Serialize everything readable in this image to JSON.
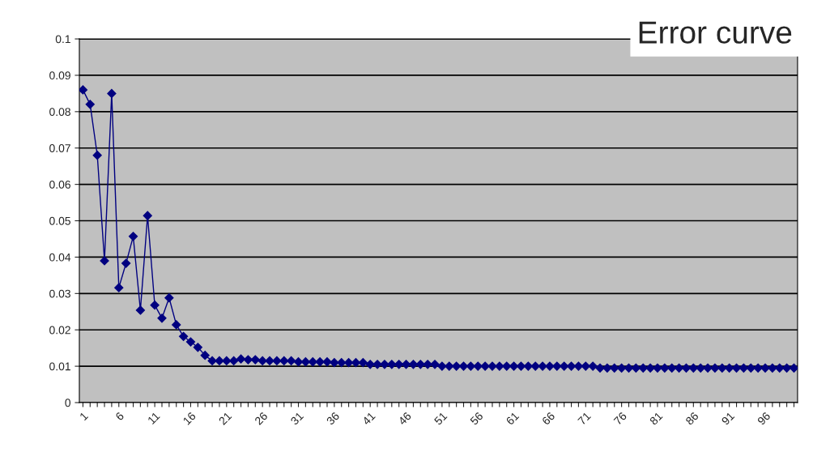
{
  "chart_data": {
    "type": "line",
    "title": "Error curve",
    "categories": [
      "1",
      null,
      null,
      null,
      null,
      "6",
      null,
      null,
      null,
      null,
      "11",
      null,
      null,
      null,
      null,
      "16",
      null,
      null,
      null,
      null,
      "21",
      null,
      null,
      null,
      null,
      "26",
      null,
      null,
      null,
      null,
      "31",
      null,
      null,
      null,
      null,
      "36",
      null,
      null,
      null,
      null,
      "41",
      null,
      null,
      null,
      null,
      "46",
      null,
      null,
      null,
      null,
      "51",
      null,
      null,
      null,
      null,
      "56",
      null,
      null,
      null,
      null,
      "61",
      null,
      null,
      null,
      null,
      "66",
      null,
      null,
      null,
      null,
      "71",
      null,
      null,
      null,
      null,
      "76",
      null,
      null,
      null,
      null,
      "81",
      null,
      null,
      null,
      null,
      "86",
      null,
      null,
      null,
      null,
      "91",
      null,
      null,
      null,
      null,
      "96",
      null,
      null,
      null,
      null
    ],
    "series": [
      {
        "color": "#000080",
        "values": [
          0.086,
          0.082,
          0.068,
          0.039,
          0.085,
          0.0316,
          0.0383,
          0.0457,
          0.0254,
          0.0514,
          0.0268,
          0.0232,
          0.0288,
          0.0214,
          0.0182,
          0.0167,
          0.0152,
          0.013,
          0.0115,
          0.0115,
          0.0115,
          0.0115,
          0.012,
          0.0118,
          0.0118,
          0.0115,
          0.0115,
          0.0115,
          0.0115,
          0.0115,
          0.0112,
          0.0112,
          0.0112,
          0.0112,
          0.0112,
          0.011,
          0.011,
          0.011,
          0.011,
          0.011,
          0.0105,
          0.0105,
          0.0105,
          0.0105,
          0.0105,
          0.0105,
          0.0105,
          0.0105,
          0.0105,
          0.0105,
          0.01,
          0.01,
          0.01,
          0.01,
          0.01,
          0.01,
          0.01,
          0.01,
          0.01,
          0.01,
          0.01,
          0.01,
          0.01,
          0.01,
          0.01,
          0.01,
          0.01,
          0.01,
          0.01,
          0.01,
          0.01,
          0.01,
          0.0095,
          0.0095,
          0.0095,
          0.0095,
          0.0095,
          0.0095,
          0.0095,
          0.0095,
          0.0095,
          0.0095,
          0.0095,
          0.0095,
          0.0095,
          0.0095,
          0.0095,
          0.0095,
          0.0095,
          0.0095,
          0.0095,
          0.0095,
          0.0095,
          0.0095,
          0.0095,
          0.0095,
          0.0095,
          0.0095,
          0.0095,
          0.0095
        ]
      }
    ],
    "ylim": [
      0,
      0.1
    ],
    "yticks": [
      0,
      0.01,
      0.02,
      0.03,
      0.04,
      0.05,
      0.06,
      0.07,
      0.08,
      0.09,
      0.1
    ],
    "grid": "y",
    "legend": false,
    "marker": "diamond",
    "line_style": "solid"
  }
}
